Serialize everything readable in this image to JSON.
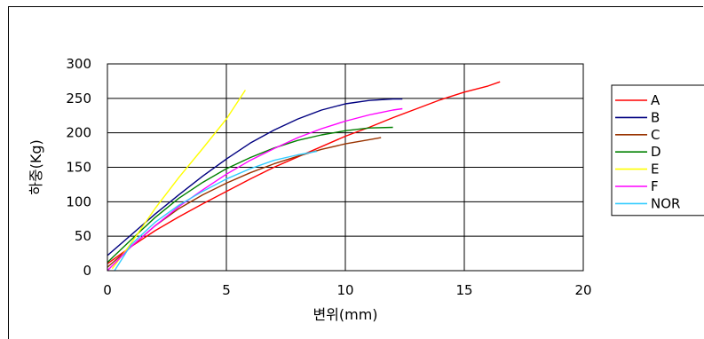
{
  "chart_data": {
    "type": "line",
    "title": "",
    "xlabel": "변위(mm)",
    "ylabel": "하중(Kg)",
    "xlim": [
      0,
      20
    ],
    "ylim": [
      0,
      300
    ],
    "xticks": [
      "0",
      "5",
      "10",
      "15",
      "20"
    ],
    "yticks": [
      "0",
      "50",
      "100",
      "150",
      "200",
      "250",
      "300"
    ],
    "grid": true,
    "legend_position": "right",
    "series": [
      {
        "name": "A",
        "color": "#ff0000",
        "x": [
          0,
          1,
          2,
          3,
          4,
          5,
          6,
          7,
          8,
          9,
          10,
          11,
          12,
          13,
          14,
          15,
          16,
          16.5
        ],
        "y": [
          10,
          35,
          58,
          78,
          97,
          115,
          133,
          150,
          165,
          180,
          195,
          208,
          222,
          235,
          248,
          259,
          268,
          274
        ]
      },
      {
        "name": "B",
        "color": "#000080",
        "x": [
          0,
          1,
          2,
          3,
          4,
          5,
          6,
          7,
          8,
          9,
          10,
          11,
          12,
          12.4
        ],
        "y": [
          22,
          52,
          82,
          110,
          137,
          162,
          185,
          204,
          220,
          233,
          242,
          247,
          249,
          249
        ]
      },
      {
        "name": "C",
        "color": "#993300",
        "x": [
          0,
          1,
          2,
          3,
          4,
          5,
          6,
          7,
          8,
          9,
          10,
          11,
          11.5
        ],
        "y": [
          5,
          35,
          65,
          90,
          110,
          127,
          142,
          155,
          166,
          176,
          184,
          190,
          193
        ]
      },
      {
        "name": "D",
        "color": "#008000",
        "x": [
          0,
          1,
          2,
          3,
          4,
          5,
          6,
          7,
          8,
          9,
          10,
          11,
          12
        ],
        "y": [
          12,
          45,
          77,
          105,
          128,
          148,
          164,
          178,
          189,
          197,
          203,
          207,
          208
        ]
      },
      {
        "name": "E",
        "color": "#ffff00",
        "x": [
          0.2,
          1,
          2,
          3,
          4,
          5,
          5.8
        ],
        "y": [
          3,
          40,
          90,
          135,
          177,
          220,
          262
        ]
      },
      {
        "name": "F",
        "color": "#ff00ff",
        "x": [
          0,
          1,
          2,
          3,
          4,
          5,
          6,
          7,
          8,
          9,
          10,
          11,
          12,
          12.4
        ],
        "y": [
          0,
          35,
          65,
          93,
          117,
          140,
          160,
          177,
          193,
          206,
          217,
          226,
          233,
          235
        ]
      },
      {
        "name": "NOR",
        "color": "#33ccff",
        "x": [
          0.3,
          1,
          2,
          3,
          4,
          5,
          6,
          7,
          8,
          8.8
        ],
        "y": [
          0,
          38,
          70,
          95,
          115,
          133,
          148,
          160,
          168,
          173
        ]
      }
    ]
  }
}
